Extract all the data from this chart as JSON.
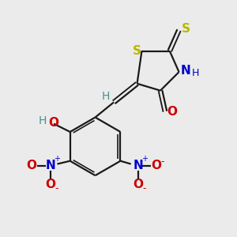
{
  "bg_color": "#ebebeb",
  "bond_color": "#1a1a1a",
  "S_color": "#b8b800",
  "N_color": "#0000cc",
  "O_color": "#cc0000",
  "H_color": "#4a9090",
  "fig_size": [
    3.0,
    3.0
  ],
  "dpi": 100,
  "ring_S_label": "S",
  "thioxo_S_label": "S",
  "N_label": "N",
  "H_label": "H",
  "O_label": "O",
  "OH_H_label": "H",
  "N_plus": "+",
  "O_minus": "-"
}
